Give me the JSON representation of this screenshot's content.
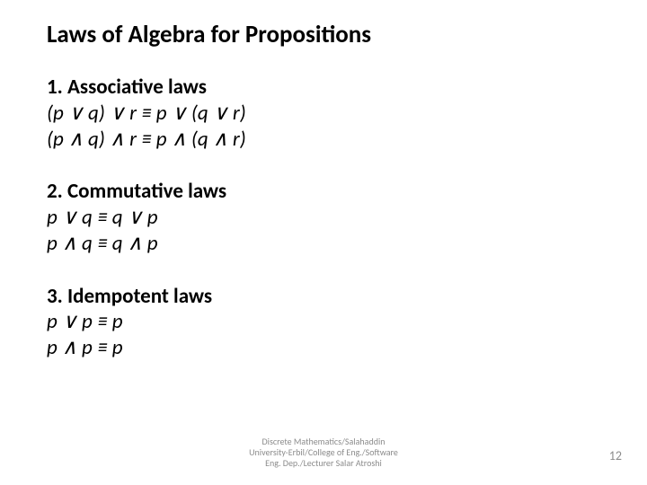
{
  "title": "Laws of Algebra for Propositions",
  "laws": [
    {
      "heading": "1. Associative laws",
      "eq1": "(p ∨ q) ∨ r ≡ p ∨ (q ∨ r)",
      "eq2": "(p ∧ q) ∧ r ≡ p ∧ (q ∧ r)"
    },
    {
      "heading": "2. Commutative laws",
      "eq1": " p ∨ q ≡ q ∨ p",
      "eq2": " p ∧ q ≡ q ∧ p"
    },
    {
      "heading": "3. Idempotent laws",
      "eq1": "p ∨ p ≡ p",
      "eq2": "p ∧ p ≡ p"
    }
  ],
  "footer_line1": "Discrete Mathematics/Salahaddin",
  "footer_line2": "University-Erbil/College of Eng./Software",
  "footer_line3": "Eng. Dep./Lecturer Salar Atroshi",
  "page_number": "12",
  "colors": {
    "background": "#ffffff",
    "text": "#000000",
    "footer_text": "#8c8c8c"
  },
  "typography": {
    "title_fontsize": 27,
    "heading_fontsize": 23,
    "equation_fontsize": 23,
    "footer_fontsize": 10,
    "pagenum_fontsize": 14,
    "font_family": "Calibri"
  }
}
